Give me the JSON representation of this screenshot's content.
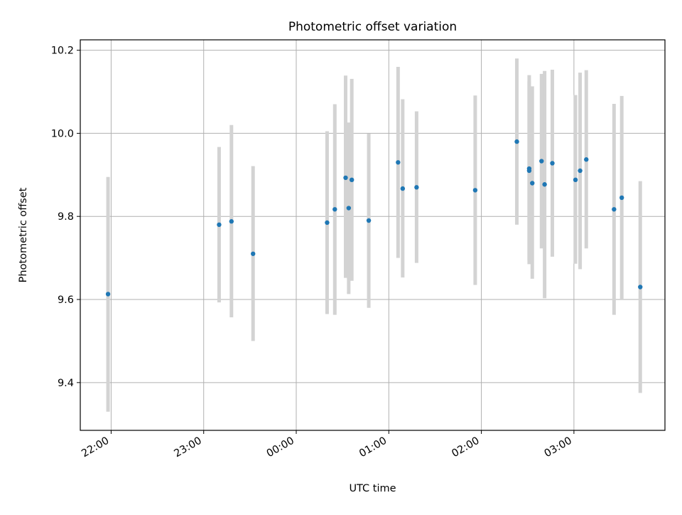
{
  "chart_data": {
    "type": "scatter",
    "title": "Photometric offset variation",
    "xlabel": "UTC time",
    "ylabel": "Photometric offset",
    "xlim": [
      "21:40",
      "03:59"
    ],
    "ylim": [
      9.285,
      10.225
    ],
    "x_ticks": [
      "22:00",
      "23:00",
      "00:00",
      "01:00",
      "02:00",
      "03:00"
    ],
    "y_ticks": [
      9.4,
      9.6,
      9.8,
      10.0,
      10.2
    ],
    "grid": true,
    "points": [
      {
        "time": "21:58",
        "value": 9.613,
        "low": 9.33,
        "high": 9.895
      },
      {
        "time": "23:10",
        "value": 9.78,
        "low": 9.593,
        "high": 9.967
      },
      {
        "time": "23:18",
        "value": 9.788,
        "low": 9.557,
        "high": 10.02
      },
      {
        "time": "23:32",
        "value": 9.71,
        "low": 9.5,
        "high": 9.921
      },
      {
        "time": "00:20",
        "value": 9.785,
        "low": 9.565,
        "high": 10.005
      },
      {
        "time": "00:25",
        "value": 9.817,
        "low": 9.563,
        "high": 10.07
      },
      {
        "time": "00:32",
        "value": 9.893,
        "low": 9.652,
        "high": 10.139
      },
      {
        "time": "00:34",
        "value": 9.82,
        "low": 9.613,
        "high": 10.026
      },
      {
        "time": "00:36",
        "value": 9.888,
        "low": 9.645,
        "high": 10.131
      },
      {
        "time": "00:47",
        "value": 9.79,
        "low": 9.58,
        "high": 9.999
      },
      {
        "time": "01:06",
        "value": 9.93,
        "low": 9.7,
        "high": 10.16
      },
      {
        "time": "01:09",
        "value": 9.867,
        "low": 9.653,
        "high": 10.082
      },
      {
        "time": "01:18",
        "value": 9.87,
        "low": 9.688,
        "high": 10.053
      },
      {
        "time": "01:56",
        "value": 9.863,
        "low": 9.635,
        "high": 10.091
      },
      {
        "time": "02:23",
        "value": 9.98,
        "low": 9.78,
        "high": 10.18
      },
      {
        "time": "02:31",
        "value": 9.915,
        "low": 9.685,
        "high": 10.14
      },
      {
        "time": "02:31",
        "value": 9.91,
        "low": 9.695,
        "high": 10.125
      },
      {
        "time": "02:33",
        "value": 9.88,
        "low": 9.65,
        "high": 10.113
      },
      {
        "time": "02:39",
        "value": 9.933,
        "low": 9.723,
        "high": 10.143
      },
      {
        "time": "02:41",
        "value": 9.877,
        "low": 9.603,
        "high": 10.15
      },
      {
        "time": "02:46",
        "value": 9.928,
        "low": 9.703,
        "high": 10.153
      },
      {
        "time": "03:01",
        "value": 9.888,
        "low": 9.686,
        "high": 10.092
      },
      {
        "time": "03:04",
        "value": 9.91,
        "low": 9.673,
        "high": 10.146
      },
      {
        "time": "03:08",
        "value": 9.937,
        "low": 9.723,
        "high": 10.152
      },
      {
        "time": "03:26",
        "value": 9.817,
        "low": 9.563,
        "high": 10.071
      },
      {
        "time": "03:31",
        "value": 9.845,
        "low": 9.6,
        "high": 10.09
      },
      {
        "time": "03:43",
        "value": 9.63,
        "low": 9.375,
        "high": 9.885
      }
    ],
    "colors": {
      "marker": "#1f77b4",
      "errorbar": "#d3d3d3",
      "grid": "#b0b0b0",
      "axes": "#000000"
    }
  }
}
